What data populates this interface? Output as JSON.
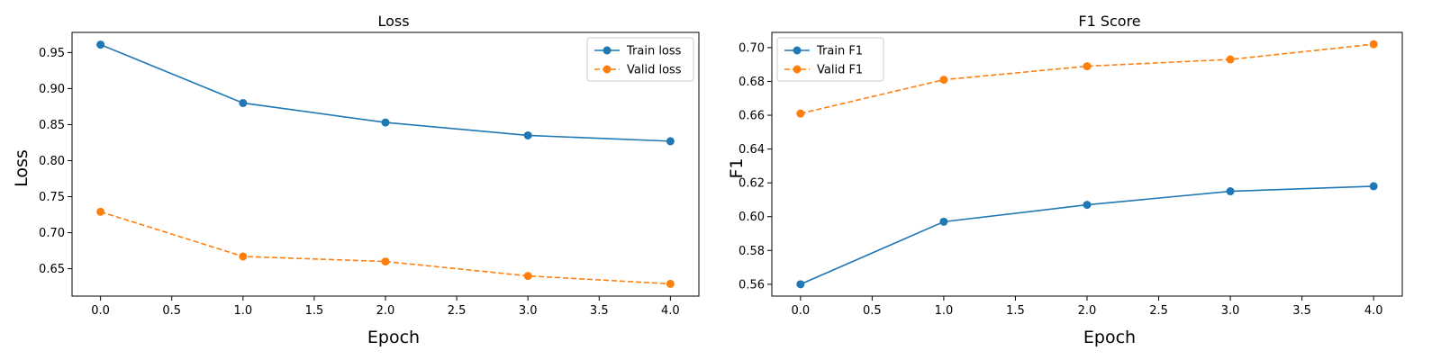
{
  "colors": {
    "train": "#1f77b4",
    "valid": "#ff7f0e"
  },
  "chart_data": [
    {
      "type": "line",
      "title": "Loss",
      "xlabel": "Epoch",
      "ylabel": "Loss",
      "x": [
        0,
        1,
        2,
        3,
        4
      ],
      "xlim": [
        -0.2,
        4.2
      ],
      "ylim": [
        0.612,
        0.978
      ],
      "xticks": [
        "0.0",
        "0.5",
        "1.0",
        "1.5",
        "2.0",
        "2.5",
        "3.0",
        "3.5",
        "4.0"
      ],
      "xtick_values": [
        0,
        0.5,
        1,
        1.5,
        2,
        2.5,
        3,
        3.5,
        4
      ],
      "yticks": [
        "0.65",
        "0.70",
        "0.75",
        "0.80",
        "0.85",
        "0.90",
        "0.95"
      ],
      "ytick_values": [
        0.65,
        0.7,
        0.75,
        0.8,
        0.85,
        0.9,
        0.95
      ],
      "grid": false,
      "legend_position": "top-right",
      "series": [
        {
          "name": "Train loss",
          "values": [
            0.961,
            0.88,
            0.853,
            0.835,
            0.827
          ],
          "style": "solid",
          "color": "#1f77b4"
        },
        {
          "name": "Valid loss",
          "values": [
            0.729,
            0.667,
            0.66,
            0.64,
            0.629
          ],
          "style": "dashed",
          "color": "#ff7f0e"
        }
      ]
    },
    {
      "type": "line",
      "title": "F1 Score",
      "xlabel": "Epoch",
      "ylabel": "F1",
      "x": [
        0,
        1,
        2,
        3,
        4
      ],
      "xlim": [
        -0.2,
        4.2
      ],
      "ylim": [
        0.553,
        0.709
      ],
      "xticks": [
        "0.0",
        "0.5",
        "1.0",
        "1.5",
        "2.0",
        "2.5",
        "3.0",
        "3.5",
        "4.0"
      ],
      "xtick_values": [
        0,
        0.5,
        1,
        1.5,
        2,
        2.5,
        3,
        3.5,
        4
      ],
      "yticks": [
        "0.56",
        "0.58",
        "0.60",
        "0.62",
        "0.64",
        "0.66",
        "0.68",
        "0.70"
      ],
      "ytick_values": [
        0.56,
        0.58,
        0.6,
        0.62,
        0.64,
        0.66,
        0.68,
        0.7
      ],
      "grid": false,
      "legend_position": "top-left",
      "series": [
        {
          "name": "Train F1",
          "values": [
            0.56,
            0.597,
            0.607,
            0.615,
            0.618
          ],
          "style": "solid",
          "color": "#1f77b4"
        },
        {
          "name": "Valid F1",
          "values": [
            0.661,
            0.681,
            0.689,
            0.693,
            0.702
          ],
          "style": "dashed",
          "color": "#ff7f0e"
        }
      ]
    }
  ]
}
